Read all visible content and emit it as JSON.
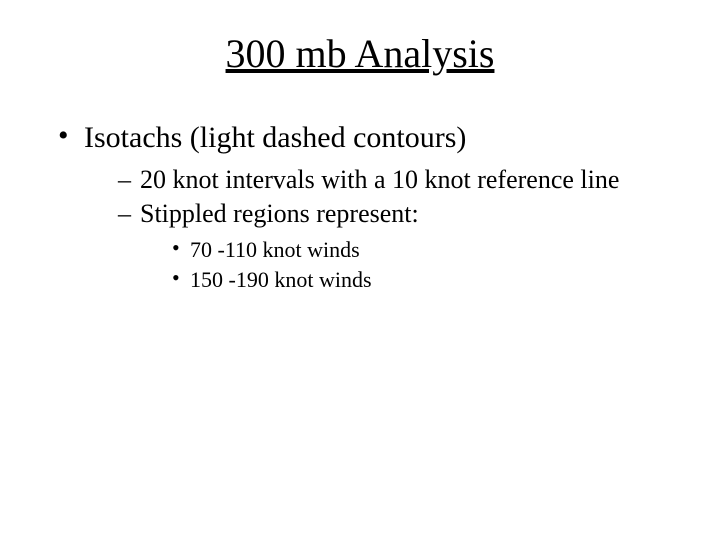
{
  "title": "300 mb Analysis",
  "bullets": {
    "item1": {
      "text": "Isotachs (light dashed contours)",
      "sub": {
        "s1": {
          "text": "20 knot intervals with a 10 knot reference line"
        },
        "s2": {
          "text": "Stippled regions represent:",
          "sub": {
            "a": "70 -110 knot winds",
            "b": "150 -190 knot winds"
          }
        }
      }
    }
  },
  "colors": {
    "background": "#ffffff",
    "text": "#000000"
  },
  "fonts": {
    "family": "Times New Roman",
    "title_size_pt": 40,
    "level1_size_pt": 30,
    "level2_size_pt": 26,
    "level3_size_pt": 22
  }
}
